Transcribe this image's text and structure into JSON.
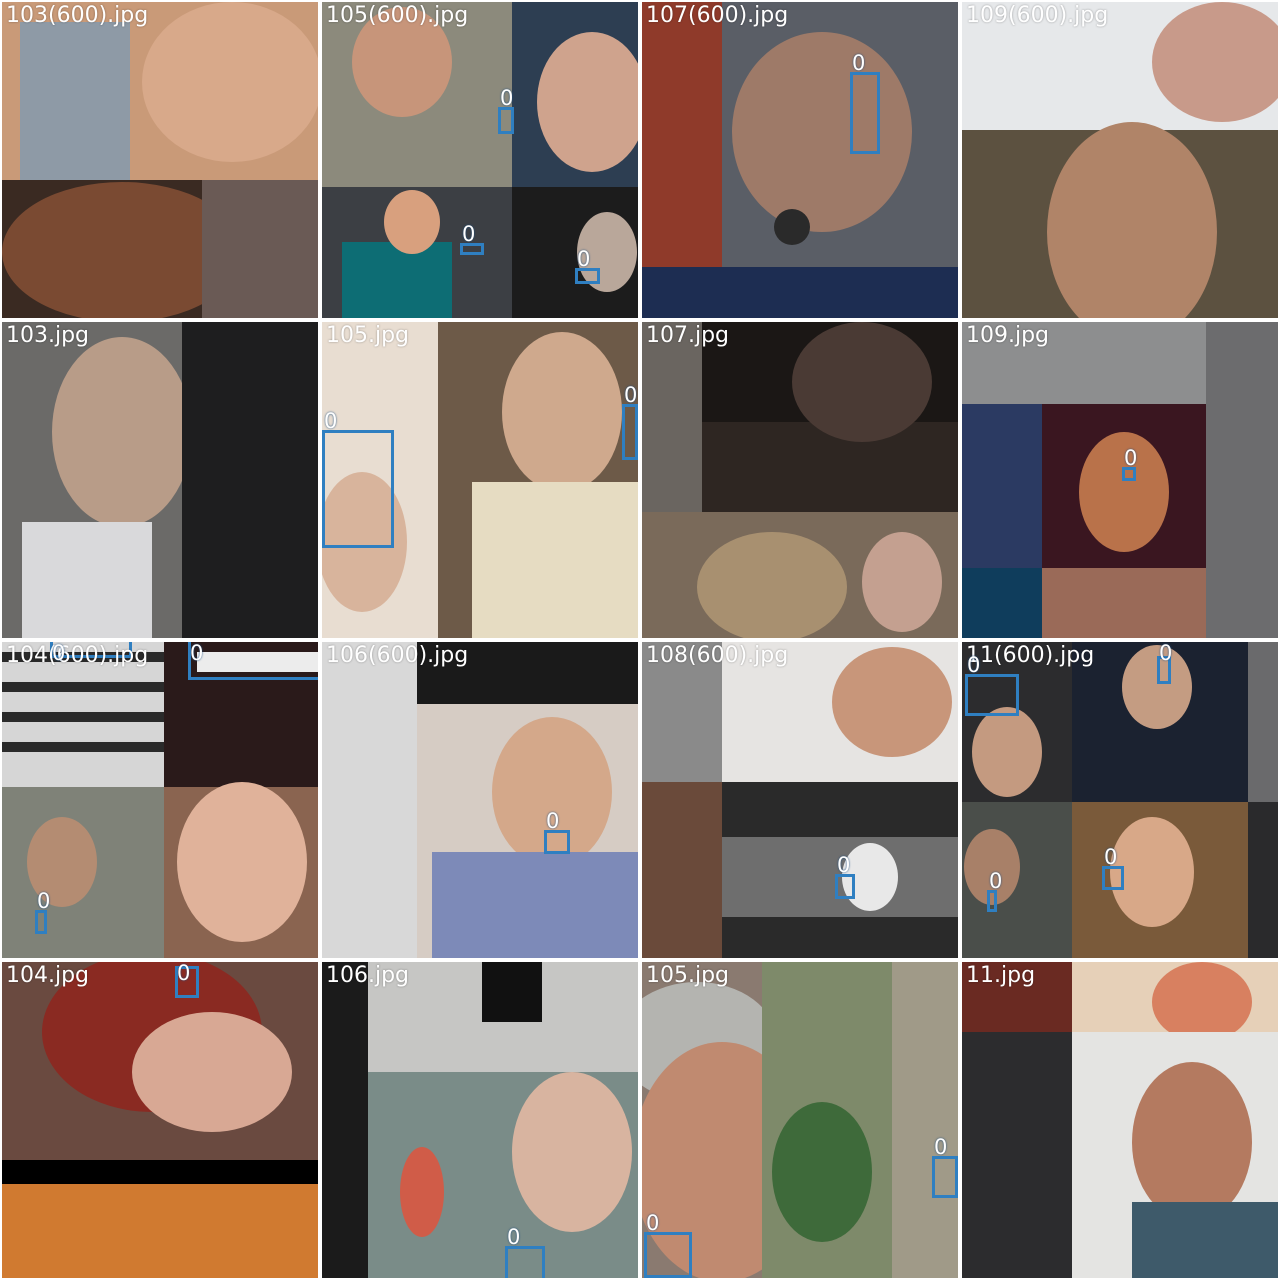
{
  "colors": {
    "box": "#2f7fc1",
    "label": "#ffffff",
    "separator": "#ffffff"
  },
  "tiles": [
    {
      "title": "103(600).jpg",
      "theme": "warm-skin",
      "boxes": []
    },
    {
      "title": "105(600).jpg",
      "theme": "outdoor-mix",
      "boxes": [
        {
          "label": "0"
        },
        {
          "label": "0"
        },
        {
          "label": "0"
        }
      ]
    },
    {
      "title": "107(600).jpg",
      "theme": "dark-hand",
      "boxes": [
        {
          "label": "0"
        }
      ]
    },
    {
      "title": "109(600).jpg",
      "theme": "pale-portrait",
      "boxes": []
    },
    {
      "title": "103.jpg",
      "theme": "grey-profile",
      "boxes": []
    },
    {
      "title": "105.jpg",
      "theme": "beige-portrait",
      "boxes": [
        {
          "label": "0"
        },
        {
          "label": "0"
        }
      ]
    },
    {
      "title": "107.jpg",
      "theme": "dark-interior",
      "boxes": []
    },
    {
      "title": "109.jpg",
      "theme": "grey-neon",
      "boxes": [
        {
          "label": "0"
        }
      ]
    },
    {
      "title": "104(600).jpg",
      "theme": "stripes-collage",
      "boxes": [
        {
          "label": "0"
        },
        {
          "label": "0"
        },
        {
          "label": "0"
        }
      ]
    },
    {
      "title": "106(600).jpg",
      "theme": "bw-portrait",
      "boxes": [
        {
          "label": "0"
        }
      ]
    },
    {
      "title": "108(600).jpg",
      "theme": "bw-interior",
      "boxes": [
        {
          "label": "0"
        }
      ]
    },
    {
      "title": "11(600).jpg",
      "theme": "istock-collage",
      "boxes": [
        {
          "label": "0"
        },
        {
          "label": "0"
        },
        {
          "label": "0"
        },
        {
          "label": "0"
        }
      ]
    },
    {
      "title": "104.jpg",
      "theme": "red-hair",
      "boxes": [
        {
          "label": "0"
        }
      ]
    },
    {
      "title": "106.jpg",
      "theme": "street-aquarium",
      "boxes": [
        {
          "label": "0"
        }
      ]
    },
    {
      "title": "105.jpg",
      "theme": "older-man",
      "boxes": [
        {
          "label": "0"
        },
        {
          "label": "0"
        }
      ]
    },
    {
      "title": "11.jpg",
      "theme": "istock-woman",
      "boxes": []
    }
  ]
}
